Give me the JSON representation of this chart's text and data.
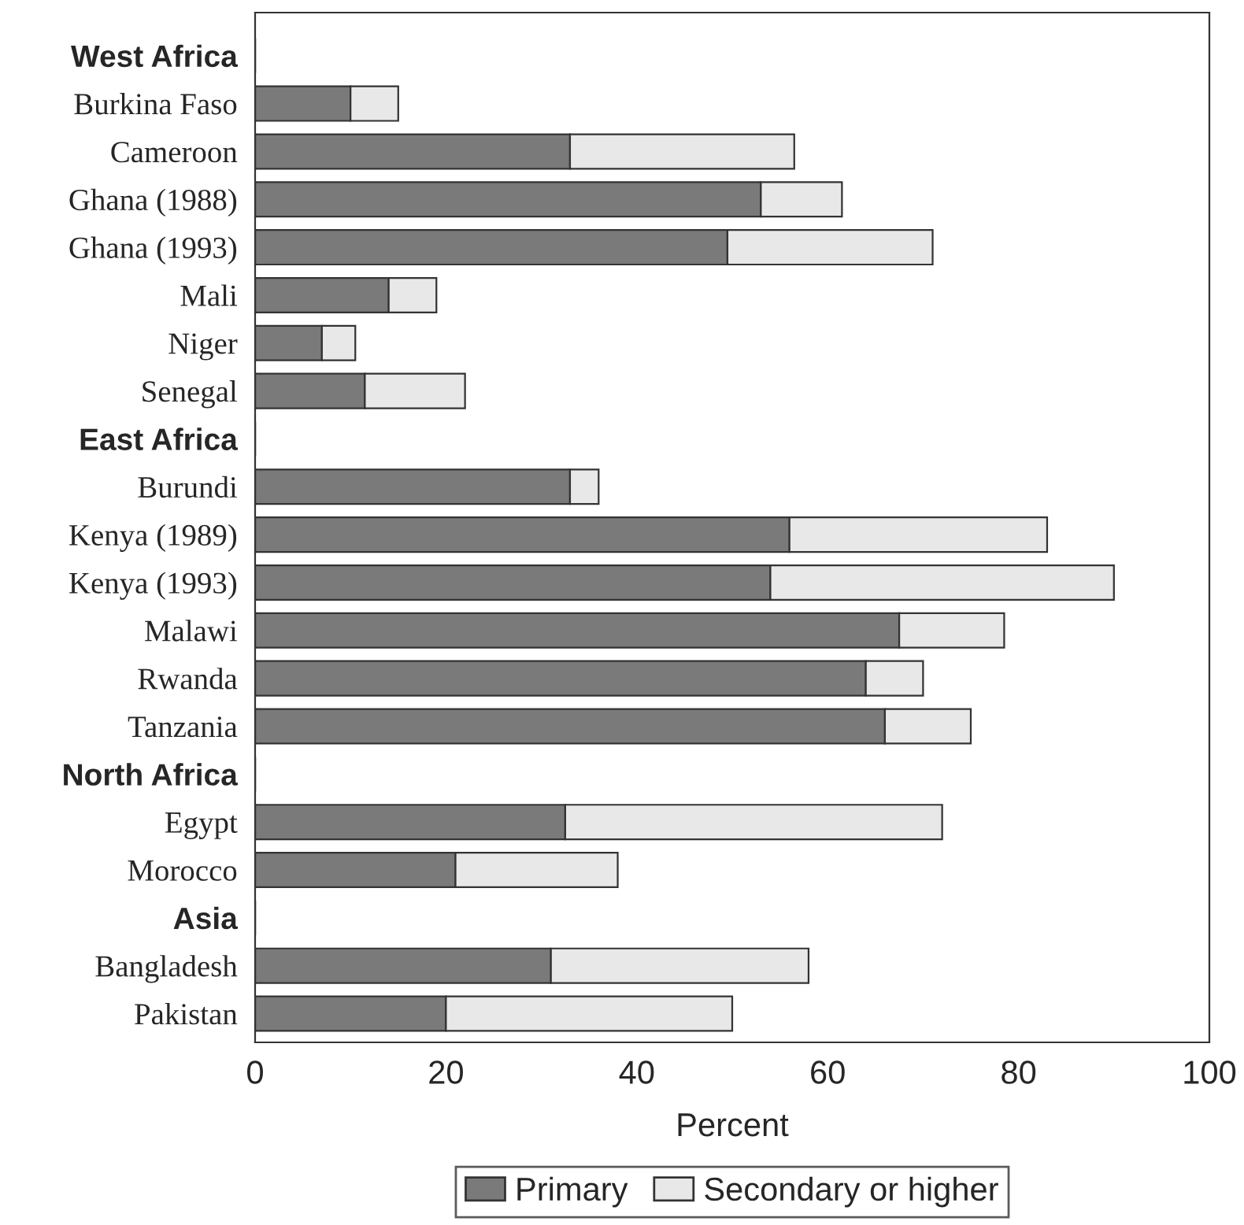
{
  "chart_data": {
    "type": "bar",
    "orientation": "horizontal",
    "stacked": true,
    "xlabel": "Percent",
    "categories": [
      "West Africa",
      "Burkina Faso",
      "Cameroon",
      "Ghana (1988)",
      "Ghana (1993)",
      "Mali",
      "Niger",
      "Senegal",
      "East Africa",
      "Burundi",
      "Kenya (1989)",
      "Kenya (1993)",
      "Malawi",
      "Rwanda",
      "Tanzania",
      "North Africa",
      "Egypt",
      "Morocco",
      "Asia",
      "Bangladesh",
      "Pakistan"
    ],
    "series": [
      {
        "name": "Primary",
        "color": "#7a7a7a",
        "values": [
          null,
          10,
          33,
          53,
          49.5,
          14,
          7,
          11.5,
          null,
          33,
          56,
          54,
          67.5,
          64,
          66,
          null,
          32.5,
          21,
          null,
          31,
          20
        ]
      },
      {
        "name": "Secondary or higher",
        "color": "#e8e8e8",
        "values": [
          null,
          5,
          23.5,
          8.5,
          21.5,
          5,
          3.5,
          10.5,
          null,
          3,
          27,
          36,
          11,
          6,
          9,
          null,
          39.5,
          17,
          null,
          27,
          30
        ]
      }
    ],
    "xlim": [
      0,
      100
    ],
    "xticks": [
      0,
      20,
      40,
      60,
      80,
      100
    ],
    "grid": false,
    "legend": "bottom"
  }
}
